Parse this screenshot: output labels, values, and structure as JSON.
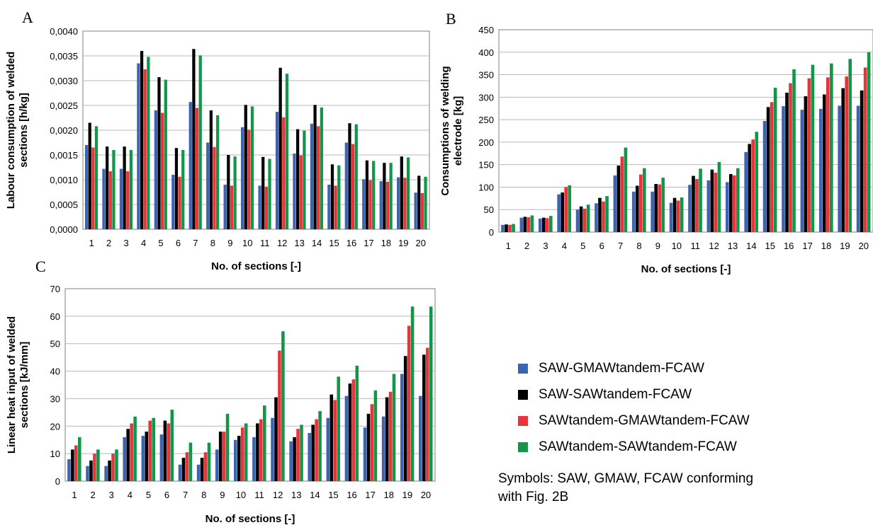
{
  "panel_letters": {
    "a": "A",
    "b": "B",
    "c": "C"
  },
  "colors": {
    "blue": "#3c64b0",
    "black": "#000000",
    "red": "#e8333a",
    "green": "#13954a",
    "grid": "#b8b8b8",
    "frame": "#808080"
  },
  "legend": {
    "items": [
      {
        "label": "SAW-GMAWtandem-FCAW",
        "color": "#3c64b0"
      },
      {
        "label": "SAW-SAWtandem-FCAW",
        "color": "#000000"
      },
      {
        "label": "SAWtandem-GMAWtandem-FCAW",
        "color": "#e8333a"
      },
      {
        "label": "SAWtandem-SAWtandem-FCAW",
        "color": "#13954a"
      }
    ]
  },
  "note": {
    "line1": "Symbols: SAW, GMAW, FCAW conforming",
    "line2": "with Fig. 2B"
  },
  "chart_data": [
    {
      "panel": "A",
      "type": "bar",
      "xlabel": "No. of sections [-]",
      "ylabel": "Labour consumption of welded sections [h/kg]",
      "ylim": [
        0,
        0.004
      ],
      "yticks": [
        "0,0000",
        "0,0005",
        "0,0010",
        "0,0015",
        "0,0020",
        "0,0025",
        "0,0030",
        "0,0035",
        "0,0040"
      ],
      "grid": true,
      "categories": [
        "1",
        "2",
        "3",
        "4",
        "5",
        "6",
        "7",
        "8",
        "9",
        "10",
        "11",
        "12",
        "13",
        "14",
        "15",
        "16",
        "17",
        "18",
        "19",
        "20"
      ],
      "series": [
        {
          "name": "SAW-GMAWtandem-FCAW",
          "values": [
            0.0017,
            0.00122,
            0.00122,
            0.00335,
            0.0024,
            0.0011,
            0.00257,
            0.00175,
            0.0009,
            0.00206,
            0.00088,
            0.00237,
            0.00153,
            0.00213,
            0.0009,
            0.00175,
            0.00101,
            0.00097,
            0.00105,
            0.00074
          ]
        },
        {
          "name": "SAW-SAWtandem-FCAW",
          "values": [
            0.00215,
            0.00167,
            0.00167,
            0.0036,
            0.00307,
            0.00164,
            0.00364,
            0.0024,
            0.0015,
            0.00251,
            0.00146,
            0.00326,
            0.00202,
            0.00251,
            0.00131,
            0.00214,
            0.00139,
            0.00134,
            0.00147,
            0.00108
          ]
        },
        {
          "name": "SAWtandem-GMAWtandem-FCAW",
          "values": [
            0.00165,
            0.00117,
            0.00117,
            0.00323,
            0.00235,
            0.00106,
            0.00245,
            0.00166,
            0.00088,
            0.00201,
            0.00086,
            0.00226,
            0.00149,
            0.00208,
            0.00088,
            0.00172,
            0.00099,
            0.00096,
            0.00104,
            0.00073
          ]
        },
        {
          "name": "SAWtandem-SAWtandem-FCAW",
          "values": [
            0.00208,
            0.0016,
            0.0016,
            0.00348,
            0.00302,
            0.0016,
            0.00351,
            0.0023,
            0.00147,
            0.00248,
            0.00142,
            0.00314,
            0.00199,
            0.00246,
            0.00129,
            0.00212,
            0.00138,
            0.00134,
            0.00145,
            0.00106
          ]
        }
      ]
    },
    {
      "panel": "B",
      "type": "bar",
      "xlabel": "No. of sections [-]",
      "ylabel": "Consumptions of welding electrode [kg]",
      "ylim": [
        0,
        450
      ],
      "yticks": [
        "0",
        "50",
        "100",
        "150",
        "200",
        "250",
        "300",
        "350",
        "400",
        "450"
      ],
      "grid": true,
      "categories": [
        "1",
        "2",
        "3",
        "4",
        "5",
        "6",
        "7",
        "8",
        "9",
        "10",
        "11",
        "12",
        "13",
        "14",
        "15",
        "16",
        "17",
        "18",
        "19",
        "20"
      ],
      "series": [
        {
          "name": "SAW-GMAWtandem-FCAW",
          "values": [
            16,
            32,
            30,
            84,
            50,
            64,
            126,
            90,
            90,
            65,
            105,
            115,
            111,
            178,
            247,
            280,
            272,
            274,
            281,
            281
          ]
        },
        {
          "name": "SAW-SAWtandem-FCAW",
          "values": [
            17,
            34,
            32,
            88,
            57,
            76,
            148,
            103,
            107,
            76,
            125,
            139,
            129,
            196,
            278,
            310,
            302,
            306,
            320,
            315
          ]
        },
        {
          "name": "SAWtandem-GMAWtandem-FCAW",
          "values": [
            16,
            33,
            31,
            100,
            52,
            68,
            168,
            128,
            106,
            70,
            118,
            132,
            126,
            206,
            289,
            331,
            342,
            344,
            346,
            366
          ]
        },
        {
          "name": "SAWtandem-SAWtandem-FCAW",
          "values": [
            18,
            37,
            36,
            104,
            61,
            80,
            188,
            142,
            121,
            77,
            141,
            156,
            142,
            223,
            321,
            362,
            372,
            375,
            385,
            400
          ]
        }
      ]
    },
    {
      "panel": "C",
      "type": "bar",
      "xlabel": "No. of sections [-]",
      "ylabel": "Linear heat input of welded sections [kJ/mm]",
      "ylim": [
        0,
        70
      ],
      "yticks": [
        "0",
        "10",
        "20",
        "30",
        "40",
        "50",
        "60",
        "70"
      ],
      "grid": true,
      "categories": [
        "1",
        "2",
        "3",
        "4",
        "5",
        "6",
        "7",
        "8",
        "9",
        "10",
        "11",
        "12",
        "13",
        "14",
        "15",
        "16",
        "17",
        "18",
        "19",
        "20"
      ],
      "series": [
        {
          "name": "SAW-GMAWtandem-FCAW",
          "values": [
            8,
            5.5,
            5.5,
            16,
            16.5,
            17,
            6,
            6,
            11.5,
            15,
            16,
            23,
            14.5,
            17.5,
            23,
            31,
            19.5,
            23.5,
            39,
            31
          ]
        },
        {
          "name": "SAW-SAWtandem-FCAW",
          "values": [
            11.5,
            7.5,
            7.5,
            19,
            18,
            22,
            8.5,
            8.5,
            18,
            16.5,
            21,
            30.5,
            16,
            20.5,
            31.5,
            35.5,
            24.5,
            30.5,
            45.5,
            46
          ]
        },
        {
          "name": "SAWtandem-GMAWtandem-FCAW",
          "values": [
            13,
            10,
            10,
            21,
            22,
            21,
            10.5,
            10.5,
            18,
            19.5,
            22.5,
            47.5,
            19,
            22.5,
            29.5,
            37,
            28,
            32.5,
            56.5,
            48.5
          ]
        },
        {
          "name": "SAWtandem-SAWtandem-FCAW",
          "values": [
            16,
            11.5,
            11.5,
            23.5,
            23,
            26,
            14,
            14,
            24.5,
            21,
            27.5,
            54.5,
            20.5,
            25.5,
            38,
            42,
            33,
            39,
            63.5,
            63.5
          ]
        }
      ]
    }
  ]
}
